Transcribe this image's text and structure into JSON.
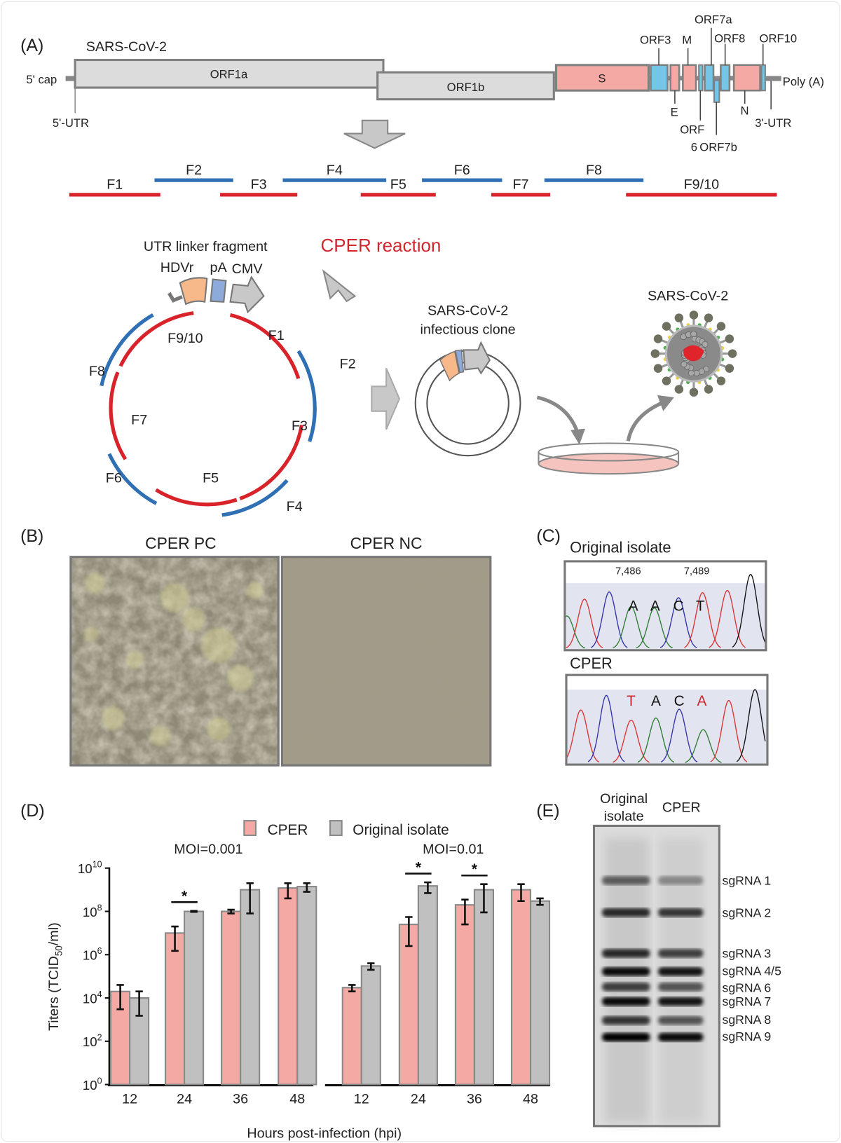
{
  "panels": {
    "a": "(A)",
    "b": "(B)",
    "c": "(C)",
    "d": "(D)",
    "e": "(E)"
  },
  "genome": {
    "title": "SARS-CoV-2",
    "five_cap": "5' cap",
    "five_utr": "5'-UTR",
    "orf1a": "ORF1a",
    "orf1b": "ORF1b",
    "s": "S",
    "orf3": "ORF3",
    "m": "M",
    "orf7a": "ORF7a",
    "orf8": "ORF8",
    "orf10": "ORF10",
    "e": "E",
    "orf6_line1": "ORF",
    "orf6_line2": "6",
    "orf7b": "ORF7b",
    "n": "N",
    "three_utr": "3'-UTR",
    "poly_a": "Poly (A)"
  },
  "fragments": [
    "F1",
    "F2",
    "F3",
    "F4",
    "F5",
    "F6",
    "F7",
    "F8",
    "F9/10"
  ],
  "cper": {
    "utr_linker": "UTR linker fragment",
    "hdvr": "HDVr",
    "pa": "pA",
    "cmv": "CMV",
    "reaction": "CPER reaction",
    "clone_line1": "SARS-CoV-2",
    "clone_line2": "infectious clone",
    "virus": "SARS-CoV-2"
  },
  "micrographs": {
    "pc": "CPER PC",
    "nc": "CPER NC"
  },
  "sequencing": {
    "original_title": "Original isolate",
    "cper_title": "CPER",
    "pos_start": "7,486",
    "pos_end": "7,489",
    "original_bases": [
      "A",
      "A",
      "C",
      "T"
    ],
    "cper_bases": [
      "T",
      "A",
      "C",
      "A"
    ],
    "cper_mutated": [
      true,
      false,
      false,
      true
    ]
  },
  "northern": {
    "col1_line1": "Original",
    "col1_line2": "isolate",
    "col2": "CPER",
    "bands": [
      "sgRNA 1",
      "sgRNA 2",
      "sgRNA 3",
      "sgRNA 4/5",
      "sgRNA 6",
      "sgRNA 7",
      "sgRNA 8",
      "sgRNA 9"
    ]
  },
  "colors": {
    "red_fragment": "#d9232b",
    "blue_fragment": "#2f6fb3",
    "cper_bar": "#f4a9a4",
    "original_bar": "#c0c0c0",
    "s_gene": "#f4a9a4",
    "accessory_orf": "#73c6e8",
    "cper_reaction_text": "#d0262d"
  },
  "chart_data": {
    "type": "bar",
    "ylabel_main": "Titers (TCID",
    "ylabel_sub": "50",
    "ylabel_end": "/ml)",
    "xlabel": "Hours post-infection (hpi)",
    "yscale": "log",
    "ylim": [
      1,
      10000000000
    ],
    "ytick_exponents": [
      0,
      2,
      4,
      6,
      8,
      10
    ],
    "ytick_base": "10",
    "legend": [
      "CPER",
      "Original isolate"
    ],
    "legend_position": "top",
    "categories": [
      "12",
      "24",
      "36",
      "48"
    ],
    "groups": [
      {
        "title": "MOI=0.001",
        "series": [
          {
            "name": "CPER",
            "values": [
              20000,
              10000000,
              100000000,
              1200000000
            ],
            "err_low": [
              3000,
              1500000,
              80000000,
              400000000
            ],
            "err_high": [
              40000,
              20000000,
              120000000,
              2000000000
            ]
          },
          {
            "name": "Original isolate",
            "values": [
              10000,
              100000000,
              1000000000,
              1400000000
            ],
            "err_low": [
              1500,
              95000000,
              80000000,
              800000000
            ],
            "err_high": [
              20000,
              105000000,
              2000000000,
              2000000000
            ]
          }
        ],
        "significance": [
          "",
          "*",
          "",
          ""
        ]
      },
      {
        "title": "MOI=0.01",
        "series": [
          {
            "name": "CPER",
            "values": [
              30000,
              25000000,
              200000000,
              1000000000
            ],
            "err_low": [
              20000,
              2500000,
              25000000,
              300000000
            ],
            "err_high": [
              40000,
              55000000,
              350000000,
              1800000000
            ]
          },
          {
            "name": "Original isolate",
            "values": [
              300000,
              1500000000,
              1000000000,
              300000000
            ],
            "err_low": [
              200000,
              700000000,
              90000000,
              200000000
            ],
            "err_high": [
              400000,
              2200000000,
              1800000000,
              400000000
            ]
          }
        ],
        "significance": [
          "",
          "*",
          "*",
          ""
        ]
      }
    ]
  }
}
